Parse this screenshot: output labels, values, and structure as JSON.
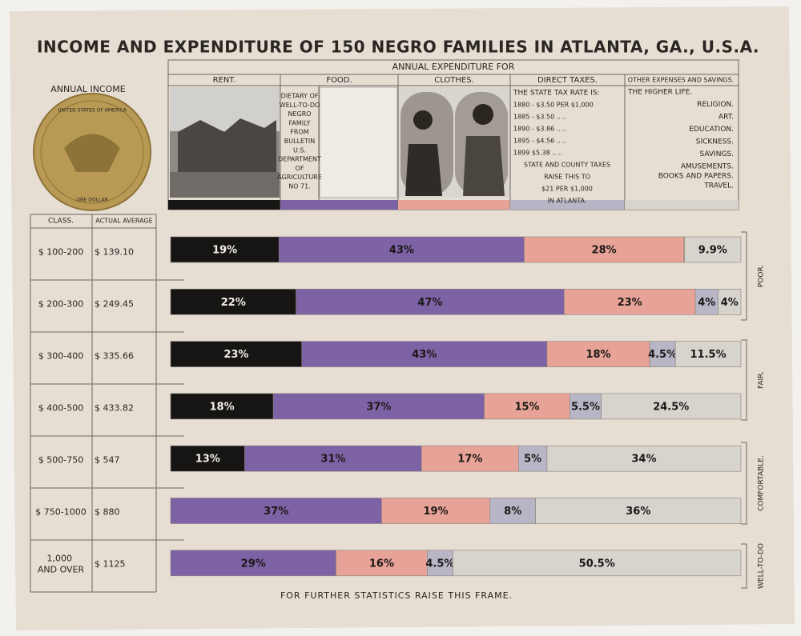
{
  "header": {
    "title": "INCOME AND EXPENDITURE OF 150 NEGRO FAMILIES IN ATLANTA, GA., U.S.A.",
    "subtitle": "ANNUAL EXPENDITURE FOR",
    "income_label": "ANNUAL INCOME",
    "coin_top": "UNITED STATES OF AMERICA",
    "coin_bottom": "ONE DOLLAR"
  },
  "food_note": [
    "DIETARY OF",
    "WELL-TO-DO",
    "NEGRO",
    "FAMILY",
    "FROM",
    "BULLETIN",
    "U.S.",
    "DEPARTMENT",
    "OF",
    "AGRICULTURE",
    "NO 71."
  ],
  "tax_note": [
    "THE STATE TAX RATE IS:",
    "1880 - $3.50  PER  $1,000",
    "1885 - $3.50    ..      ..",
    "1890 - $3.86    ..      ..",
    "1895 - $4.56    ..      ..",
    "1899    $5.38    ..      ..",
    "STATE AND COUNTY TAXES",
    "RAISE THIS TO",
    "$21 PER $1,000",
    "IN ATLANTA."
  ],
  "other_note": [
    "THE HIGHER LIFE.",
    "RELIGION.",
    "ART.",
    "EDUCATION.",
    "SICKNESS.",
    "SAVINGS.",
    "AMUSEMENTS.",
    "BOOKS AND PAPERS.",
    "TRAVEL."
  ],
  "footer": "FOR FURTHER STATISTICS RAISE THIS FRAME.",
  "chart_data": {
    "type": "bar",
    "orientation": "horizontal",
    "stacked": true,
    "category_header": "CLASS.",
    "average_header": "ACTUAL AVERAGE",
    "categories": [
      "$ 100-200",
      "$ 200-300",
      "$ 300-400",
      "$ 400-500",
      "$ 500-750",
      "$ 750-1000",
      "1,000 AND OVER"
    ],
    "averages": [
      "$ 139.10",
      "$ 249.45",
      "$ 335.66",
      "$ 433.82",
      "$ 547",
      "$ 880",
      "$ 1125"
    ],
    "xlim": [
      0,
      100
    ],
    "groups": [
      "POOR.",
      "FAIR.",
      "COMFORTABLE.",
      "WELL-TO-DO"
    ],
    "series": [
      {
        "name": "RENT.",
        "color": "#161514",
        "values": [
          19,
          22,
          23,
          18,
          13,
          null,
          null
        ],
        "value_labels": [
          "19%",
          "22%",
          "23%",
          "18%",
          "13%",
          null,
          null
        ]
      },
      {
        "name": "FOOD.",
        "color": "#7d62a6",
        "values": [
          43,
          47,
          43,
          37,
          31,
          37,
          29
        ],
        "value_labels": [
          "43%",
          "47%",
          "43%",
          "37%",
          "31%",
          "37%",
          "29%"
        ]
      },
      {
        "name": "CLOTHES.",
        "color": "#e8a398",
        "values": [
          28,
          23,
          18,
          15,
          17,
          19,
          16
        ],
        "value_labels": [
          "28%",
          "23%",
          "18%",
          "15%",
          "17%",
          "19%",
          "16%"
        ]
      },
      {
        "name": "DIRECT TAXES.",
        "color": "#b8b6c6",
        "values": [
          0.1,
          4,
          4.5,
          5.5,
          5,
          8,
          4.5
        ],
        "value_labels": [
          null,
          "4%",
          "4.5%",
          "5.5%",
          "5%",
          "8%",
          "4.5%"
        ]
      },
      {
        "name": "OTHER EXPENSES AND SAVINGS.",
        "color": "#d7d3cd",
        "values": [
          9.9,
          4,
          11.5,
          24.5,
          34,
          36,
          50.5
        ],
        "value_labels": [
          "9.9%",
          "4%",
          "11.5%",
          "24.5%",
          "34%",
          "36%",
          "50.5%"
        ]
      }
    ]
  }
}
